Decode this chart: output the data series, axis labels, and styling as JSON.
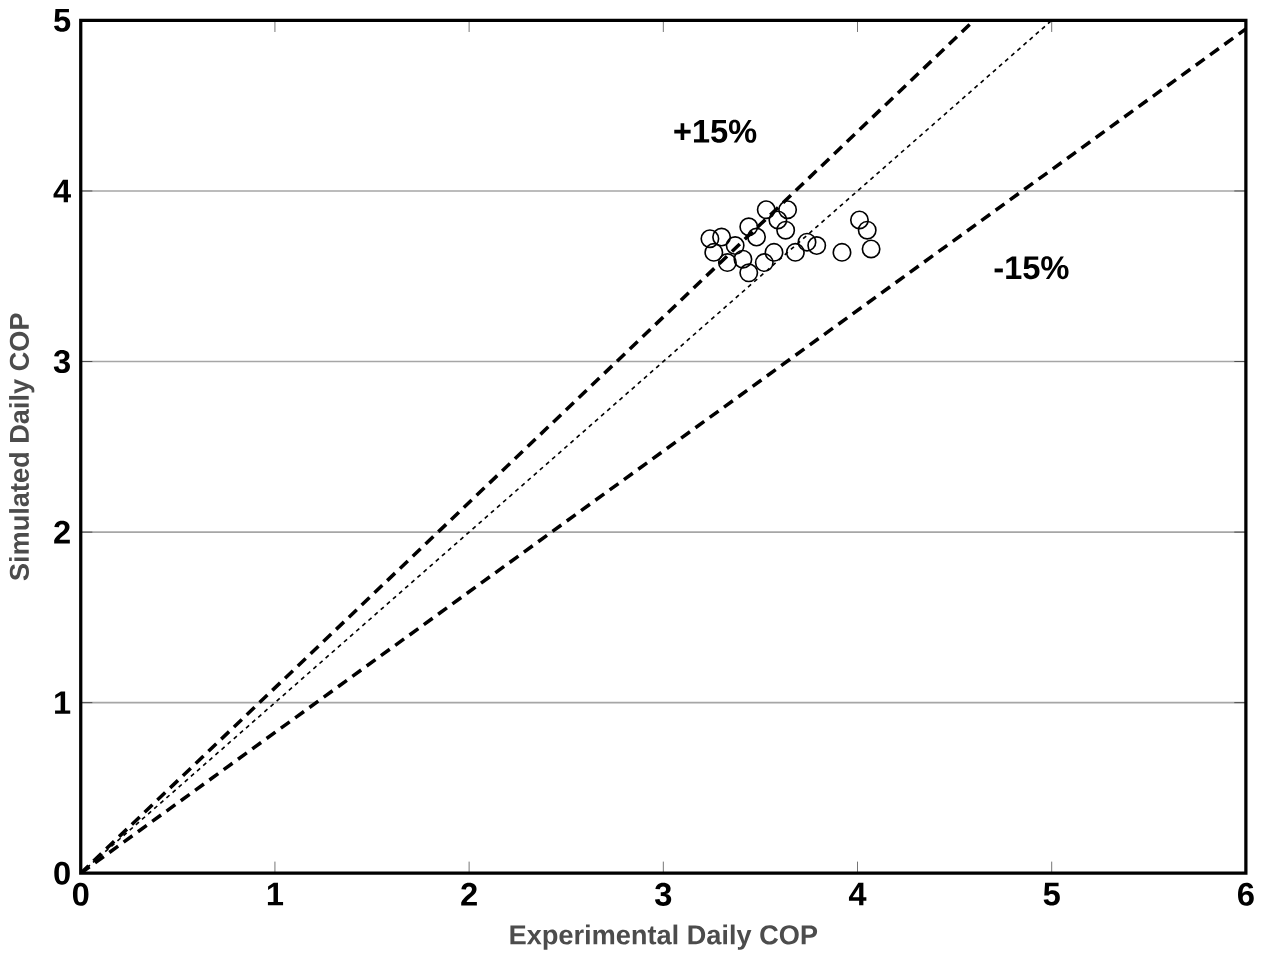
{
  "chart_data": {
    "type": "scatter",
    "xlabel": "Experimental Daily COP",
    "ylabel": "Simulated Daily COP",
    "xlim": [
      0,
      6
    ],
    "ylim": [
      0,
      5
    ],
    "xticks": [
      0,
      1,
      2,
      3,
      4,
      5,
      6
    ],
    "yticks": [
      0,
      1,
      2,
      3,
      4,
      5
    ],
    "grid": "y",
    "marker": "circle",
    "annotations": [
      "+15%",
      "-15%"
    ],
    "series": [
      {
        "color": "#000000",
        "x": [
          3.24,
          3.26,
          3.3,
          3.33,
          3.37,
          3.41,
          3.44,
          3.44,
          3.48,
          3.52,
          3.53,
          3.57,
          3.59,
          3.63,
          3.64,
          3.68,
          3.74,
          3.79,
          3.92,
          4.01,
          4.05,
          4.07
        ],
        "values": [
          3.72,
          3.64,
          3.73,
          3.58,
          3.68,
          3.6,
          3.52,
          3.79,
          3.73,
          3.58,
          3.89,
          3.64,
          3.83,
          3.77,
          3.89,
          3.64,
          3.7,
          3.68,
          3.64,
          3.83,
          3.77,
          3.66
        ]
      },
      {
        "type": "line",
        "color": "#000000",
        "marker": "none",
        "line_style": "dashed",
        "x": [
          0,
          4.6
        ],
        "values": [
          0,
          5
        ]
      },
      {
        "type": "line",
        "color": "#000000",
        "marker": "none",
        "line_style": "dotted",
        "x": [
          0,
          5
        ],
        "values": [
          0,
          5
        ]
      },
      {
        "type": "line",
        "color": "#000000",
        "marker": "none",
        "line_style": "dashed",
        "x": [
          0,
          6
        ],
        "values": [
          0,
          4.95
        ]
      }
    ]
  }
}
